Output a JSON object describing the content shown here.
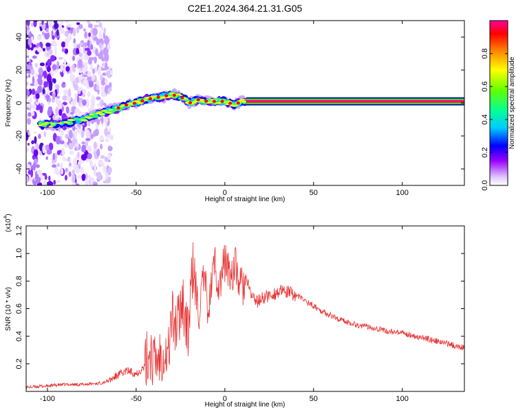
{
  "page_title": "C2E1.2024.364.21.31.G05",
  "chart_data": [
    {
      "type": "heatmap",
      "xlabel": "Height of straight line (km)",
      "ylabel": "Frequency (Hz)",
      "xlim": [
        -112,
        135
      ],
      "ylim": [
        -50,
        50
      ],
      "xticks": [
        -100,
        -50,
        0,
        50,
        100
      ],
      "yticks": [
        -40,
        -20,
        0,
        20,
        40
      ],
      "colorbar": {
        "label": "Normalized spectral amplitude",
        "range": [
          0,
          1
        ],
        "ticks": [
          "0.0",
          "0.2",
          "0.4",
          "0.6",
          "0.8"
        ],
        "ticks_values": [
          0.0,
          0.2,
          0.4,
          0.6,
          0.8
        ],
        "colors": [
          "#ffffff",
          "#cc99ff",
          "#8800ff",
          "#0000ff",
          "#00ddff",
          "#00ff66",
          "#aaff00",
          "#ffff00",
          "#ff8800",
          "#ff0000",
          "#ff0099"
        ]
      },
      "ridge": {
        "x": [
          -100,
          -95,
          -90,
          -85,
          -80,
          -75,
          -70,
          -65,
          -60,
          -55,
          -50,
          -45,
          -40,
          -35,
          -30,
          -25,
          -20,
          -15,
          -10,
          -5,
          0,
          5,
          10,
          15,
          135
        ],
        "y": [
          -13,
          -13,
          -12,
          -11,
          -10,
          -8,
          -6,
          -5,
          -3,
          -1,
          0,
          2,
          3,
          4,
          5,
          4,
          0,
          2,
          1,
          1,
          1,
          -1,
          1,
          1,
          1
        ]
      }
    },
    {
      "type": "line",
      "xlabel": "Height of straight line (km)",
      "ylabel": "SNR (10 * v/v)",
      "y_multiplier": "(x10",
      "y_multiplier_exp": "4",
      "y_multiplier_close": ")",
      "xlim": [
        -112,
        135
      ],
      "ylim": [
        0,
        1.2
      ],
      "xticks": [
        -100,
        -50,
        0,
        50,
        100
      ],
      "yticks": [
        0.2,
        0.4,
        0.6,
        0.8,
        1.0,
        1.2
      ],
      "ytick_labels": [
        "0.2",
        "0.4",
        "0.6",
        "0.8",
        "1.0",
        "1.2"
      ],
      "color": "#e83030",
      "series": [
        {
          "x": [
            -112,
            -100,
            -90,
            -80,
            -70,
            -65,
            -60,
            -55,
            -50,
            -45,
            -42,
            -40,
            -35,
            -32,
            -30,
            -27,
            -24,
            -21,
            -18,
            -15,
            -12,
            -9,
            -6,
            -3,
            0,
            3,
            6,
            9,
            12,
            15,
            18,
            22,
            26,
            30,
            35,
            40,
            45,
            50,
            55,
            60,
            65,
            70,
            75,
            80,
            85,
            90,
            95,
            100,
            105,
            110,
            115,
            120,
            125,
            130,
            135
          ],
          "y": [
            0.03,
            0.04,
            0.05,
            0.05,
            0.06,
            0.08,
            0.12,
            0.15,
            0.13,
            0.18,
            0.3,
            0.2,
            0.3,
            0.25,
            0.55,
            0.45,
            0.7,
            0.4,
            0.9,
            0.55,
            0.8,
            0.6,
            0.95,
            0.75,
            0.95,
            0.85,
            0.9,
            0.75,
            0.8,
            0.7,
            0.65,
            0.68,
            0.7,
            0.72,
            0.72,
            0.7,
            0.66,
            0.62,
            0.58,
            0.55,
            0.52,
            0.5,
            0.48,
            0.47,
            0.46,
            0.44,
            0.43,
            0.42,
            0.41,
            0.39,
            0.38,
            0.36,
            0.35,
            0.33,
            0.32
          ]
        }
      ]
    }
  ]
}
